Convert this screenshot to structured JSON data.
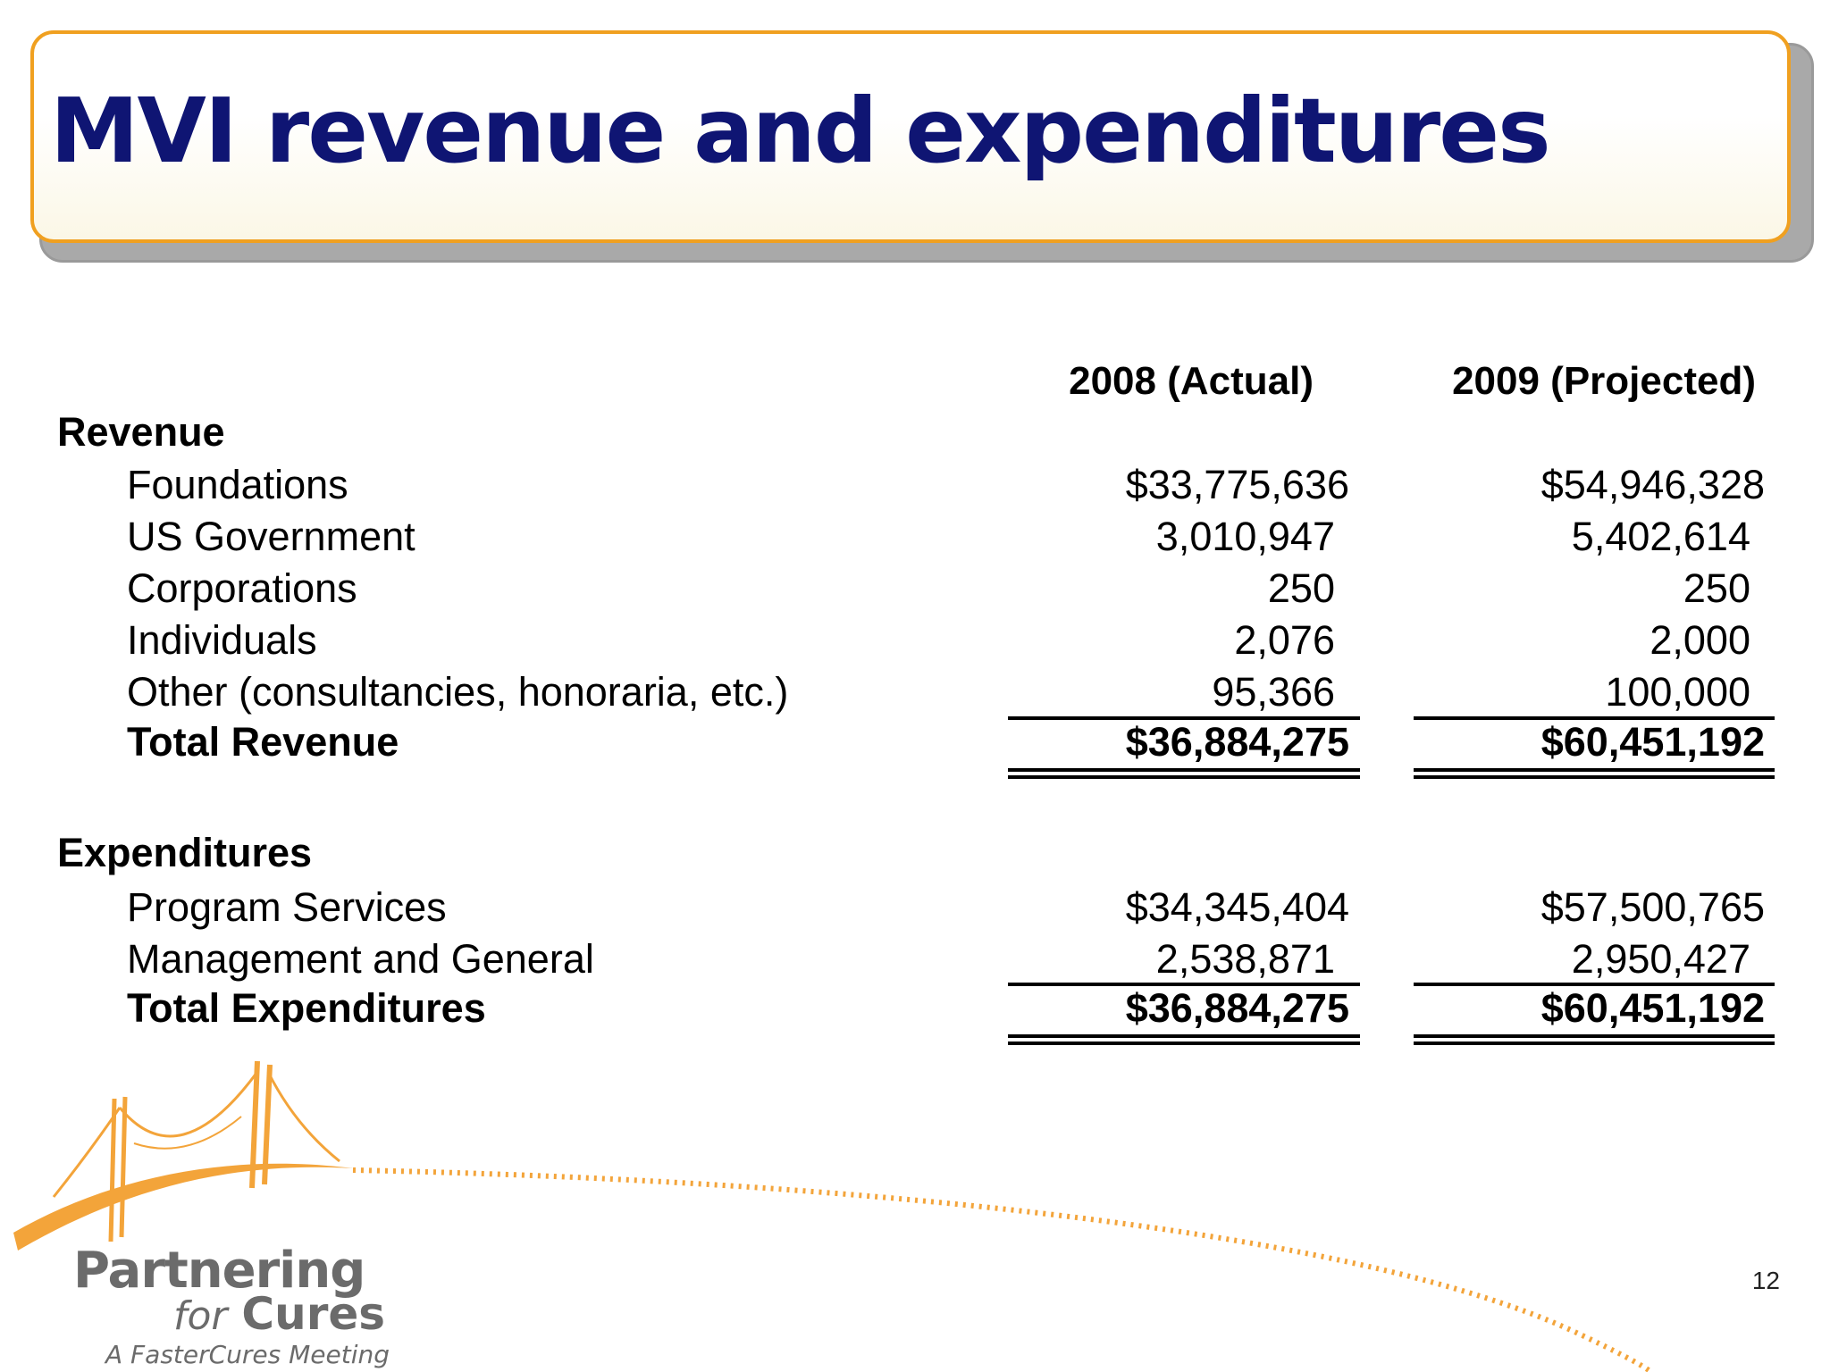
{
  "title": "MVI revenue and expenditures",
  "columns": {
    "col1": "2008 (Actual)",
    "col2": "2009 (Projected)"
  },
  "revenue": {
    "heading": "Revenue",
    "rows": [
      {
        "label": "Foundations",
        "v2008": "$33,775,636",
        "v2009": "$54,946,328"
      },
      {
        "label": "US Government",
        "v2008": "3,010,947",
        "v2009": "5,402,614"
      },
      {
        "label": "Corporations",
        "v2008": "250",
        "v2009": "250"
      },
      {
        "label": "Individuals",
        "v2008": "2,076",
        "v2009": "2,000"
      },
      {
        "label": "Other (consultancies, honoraria, etc.)",
        "v2008": "95,366",
        "v2009": "100,000"
      }
    ],
    "total": {
      "label": "Total Revenue",
      "v2008": "$36,884,275",
      "v2009": "$60,451,192"
    }
  },
  "expenditures": {
    "heading": "Expenditures",
    "rows": [
      {
        "label": "Program Services",
        "v2008": "$34,345,404",
        "v2009": "$57,500,765"
      },
      {
        "label": "Management and General",
        "v2008": "2,538,871",
        "v2009": "2,950,427"
      }
    ],
    "total": {
      "label": "Total Expenditures",
      "v2008": "$36,884,275",
      "v2009": "$60,451,192"
    }
  },
  "logo": {
    "line1": "Partnering",
    "line2a": "for",
    "line2b": "Cures",
    "tagline": "A FasterCures Meeting",
    "orange": "#f3a43a",
    "gray": "#6b6b6b"
  },
  "page_number": "12",
  "colors": {
    "title": "#0f1573",
    "frame": "#f0a020"
  }
}
